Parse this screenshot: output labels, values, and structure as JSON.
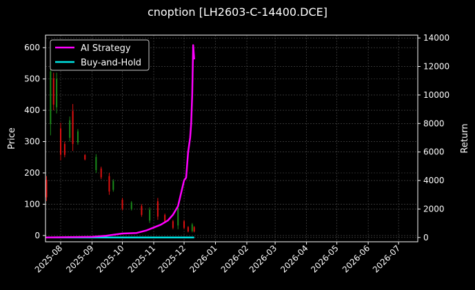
{
  "title": "cnoption [LH2603-C-14400.DCE]",
  "legend": [
    {
      "label": "AI Strategy",
      "color": "#ff00ff"
    },
    {
      "label": "Buy-and-Hold",
      "color": "#00e5e5"
    }
  ],
  "axes": {
    "left_label": "Price",
    "right_label": "Return",
    "left_ticks": [
      "0",
      "100",
      "200",
      "300",
      "400",
      "500",
      "600"
    ],
    "right_ticks": [
      "0",
      "2000",
      "4000",
      "6000",
      "8000",
      "10000",
      "12000",
      "14000"
    ],
    "x_ticks": [
      "2025-08",
      "2025-09",
      "2025-10",
      "2025-11",
      "2025-12",
      "2026-01",
      "2026-02",
      "2026-03",
      "2026-04",
      "2026-05",
      "2026-06",
      "2026-07"
    ]
  },
  "colors": {
    "background": "#000000",
    "up_candle": "#1a8c1a",
    "down_candle": "#e01010",
    "grid": "#555555",
    "axis": "#ffffff"
  },
  "chart_data": {
    "type": "line",
    "title": "cnoption [LH2603-C-14400.DCE]",
    "xlabel": "",
    "ylabel_left": "Price",
    "ylabel_right": "Return",
    "ylim_left": [
      -20,
      640
    ],
    "ylim_right": [
      -300,
      14200
    ],
    "x_range": [
      "2025-07-17",
      "2026-07-20"
    ],
    "grid": true,
    "legend_position": "upper left",
    "series": [
      {
        "name": "AI Strategy",
        "axis": "right",
        "color": "#ff00ff",
        "x": [
          "2025-07-17",
          "2025-09-01",
          "2025-09-15",
          "2025-10-01",
          "2025-10-15",
          "2025-10-25",
          "2025-11-01",
          "2025-11-08",
          "2025-11-15",
          "2025-11-20",
          "2025-11-25",
          "2025-12-01",
          "2025-12-03",
          "2025-12-05",
          "2025-12-07",
          "2025-12-08",
          "2025-12-09",
          "2025-12-10",
          "2025-12-11"
        ],
        "values": [
          0,
          50,
          120,
          280,
          320,
          500,
          700,
          900,
          1200,
          1600,
          2200,
          4000,
          4200,
          6000,
          7000,
          8000,
          10000,
          13500,
          12500
        ]
      },
      {
        "name": "Buy-and-Hold",
        "axis": "right",
        "color": "#00e5e5",
        "x": [
          "2025-07-17",
          "2025-12-11"
        ],
        "values": [
          0,
          0
        ]
      }
    ],
    "candles": {
      "axis": "left",
      "description": "Daily OHLC candlesticks (green=up, red=down), price declining from ~550 in late July 2025 to ~10-30 by mid December 2025",
      "approx_points": [
        {
          "date": "2025-07-18",
          "low": 110,
          "high": 190,
          "dir": "down"
        },
        {
          "date": "2025-07-22",
          "low": 320,
          "high": 560,
          "dir": "up"
        },
        {
          "date": "2025-07-25",
          "low": 400,
          "high": 520,
          "dir": "down"
        },
        {
          "date": "2025-07-28",
          "low": 390,
          "high": 520,
          "dir": "up"
        },
        {
          "date": "2025-08-01",
          "low": 240,
          "high": 360,
          "dir": "down"
        },
        {
          "date": "2025-08-05",
          "low": 250,
          "high": 300,
          "dir": "down"
        },
        {
          "date": "2025-08-10",
          "low": 300,
          "high": 380,
          "dir": "up"
        },
        {
          "date": "2025-08-13",
          "low": 270,
          "high": 420,
          "dir": "down"
        },
        {
          "date": "2025-08-18",
          "low": 290,
          "high": 340,
          "dir": "up"
        },
        {
          "date": "2025-08-25",
          "low": 240,
          "high": 260,
          "dir": "down"
        },
        {
          "date": "2025-09-05",
          "low": 200,
          "high": 260,
          "dir": "up"
        },
        {
          "date": "2025-09-10",
          "low": 180,
          "high": 220,
          "dir": "down"
        },
        {
          "date": "2025-09-18",
          "low": 130,
          "high": 200,
          "dir": "down"
        },
        {
          "date": "2025-09-22",
          "low": 140,
          "high": 180,
          "dir": "up"
        },
        {
          "date": "2025-10-01",
          "low": 80,
          "high": 120,
          "dir": "down"
        },
        {
          "date": "2025-10-10",
          "low": 80,
          "high": 110,
          "dir": "up"
        },
        {
          "date": "2025-10-20",
          "low": 60,
          "high": 100,
          "dir": "down"
        },
        {
          "date": "2025-10-28",
          "low": 40,
          "high": 90,
          "dir": "up"
        },
        {
          "date": "2025-11-05",
          "low": 50,
          "high": 120,
          "dir": "down"
        },
        {
          "date": "2025-11-12",
          "low": 40,
          "high": 70,
          "dir": "down"
        },
        {
          "date": "2025-11-20",
          "low": 20,
          "high": 50,
          "dir": "down"
        },
        {
          "date": "2025-11-25",
          "low": 20,
          "high": 100,
          "dir": "up"
        },
        {
          "date": "2025-12-01",
          "low": 20,
          "high": 50,
          "dir": "down"
        },
        {
          "date": "2025-12-05",
          "low": 10,
          "high": 30,
          "dir": "down"
        },
        {
          "date": "2025-12-09",
          "low": 10,
          "high": 40,
          "dir": "up"
        },
        {
          "date": "2025-12-11",
          "low": 10,
          "high": 30,
          "dir": "down"
        }
      ]
    }
  }
}
